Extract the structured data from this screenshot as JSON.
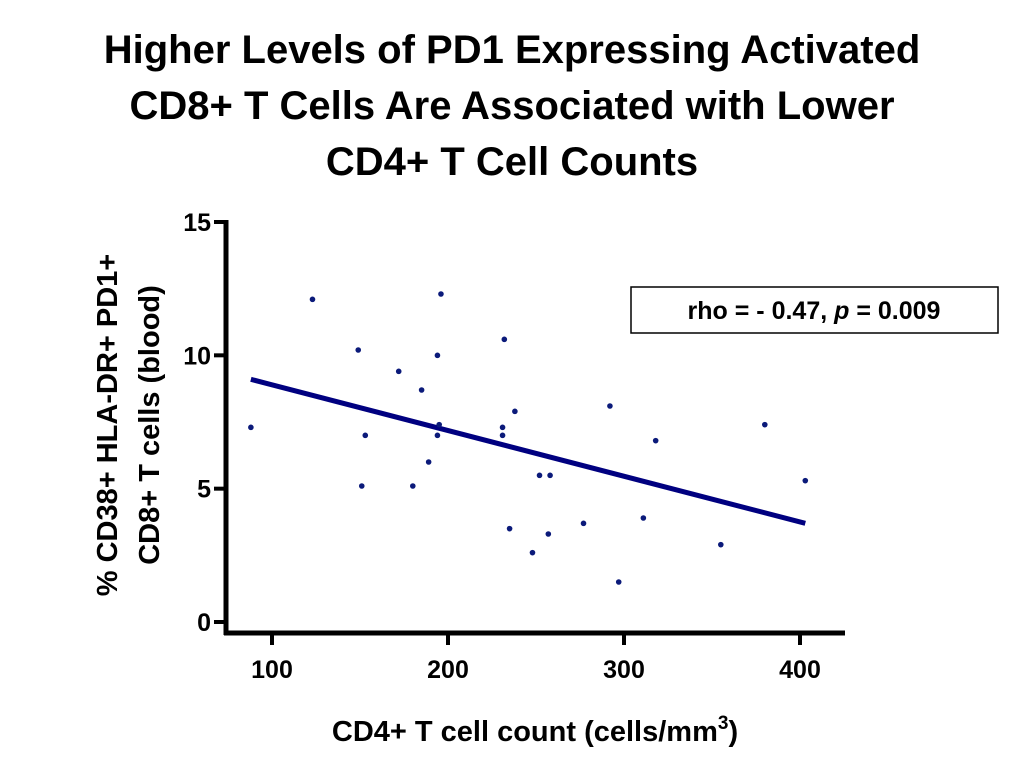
{
  "title_lines": [
    "Higher Levels of PD1 Expressing Activated",
    "CD8+ T Cells Are Associated with Lower",
    "CD4+ T Cell Counts"
  ],
  "chart_data": {
    "type": "scatter",
    "title": "Higher Levels of PD1 Expressing Activated CD8+ T Cells Are Associated with Lower CD4+ T Cell Counts",
    "xlabel": "CD4+ T cell count (cells/mm",
    "xlabel_superscript": "3",
    "xlabel_suffix": ")",
    "ylabel_lines": [
      "% CD38+ HLA-DR+ PD1+",
      "CD8+ T cells (blood)"
    ],
    "xlim": [
      80,
      425
    ],
    "ylim": [
      0,
      15
    ],
    "xticks": [
      100,
      200,
      300,
      400
    ],
    "yticks": [
      0,
      5,
      10,
      15
    ],
    "grid": false,
    "point_color": "#0b1a7a",
    "points": [
      {
        "x": 88,
        "y": 7.3
      },
      {
        "x": 123,
        "y": 12.1
      },
      {
        "x": 149,
        "y": 10.2
      },
      {
        "x": 151,
        "y": 5.1
      },
      {
        "x": 153,
        "y": 7.0
      },
      {
        "x": 172,
        "y": 9.4
      },
      {
        "x": 180,
        "y": 5.1
      },
      {
        "x": 185,
        "y": 8.7
      },
      {
        "x": 189,
        "y": 6.0
      },
      {
        "x": 194,
        "y": 10.0
      },
      {
        "x": 195,
        "y": 7.4
      },
      {
        "x": 194,
        "y": 7.0
      },
      {
        "x": 196,
        "y": 12.3
      },
      {
        "x": 231,
        "y": 7.3
      },
      {
        "x": 231,
        "y": 7.0
      },
      {
        "x": 232,
        "y": 10.6
      },
      {
        "x": 235,
        "y": 3.5
      },
      {
        "x": 238,
        "y": 7.9
      },
      {
        "x": 248,
        "y": 2.6
      },
      {
        "x": 252,
        "y": 5.5
      },
      {
        "x": 257,
        "y": 3.3
      },
      {
        "x": 258,
        "y": 5.5
      },
      {
        "x": 277,
        "y": 3.7
      },
      {
        "x": 292,
        "y": 8.1
      },
      {
        "x": 297,
        "y": 1.5
      },
      {
        "x": 311,
        "y": 3.9
      },
      {
        "x": 318,
        "y": 6.8
      },
      {
        "x": 355,
        "y": 2.9
      },
      {
        "x": 380,
        "y": 7.4
      },
      {
        "x": 403,
        "y": 5.3
      }
    ],
    "fit_line": {
      "x": [
        88,
        403
      ],
      "y": [
        9.1,
        3.7
      ],
      "color": "#000080"
    },
    "annotation": {
      "prefix": "rho = - 0.47, ",
      "p_symbol": "p",
      "suffix": " = 0.009"
    }
  }
}
